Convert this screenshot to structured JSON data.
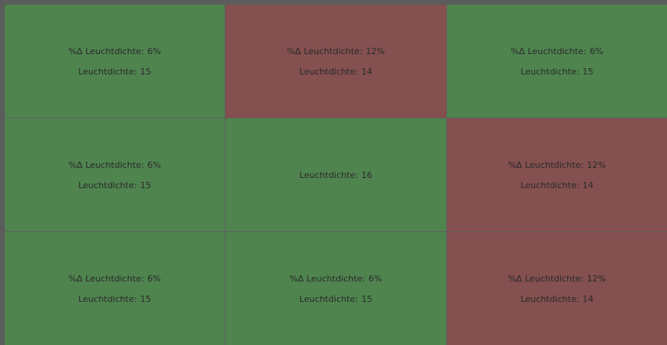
{
  "colors": {
    "ok": "#4f844f",
    "alert": "#845050",
    "border": "#5c5c5c",
    "text": "#2a2a2a"
  },
  "cells": [
    {
      "status": "ok",
      "delta_label": "%Δ Leuchtdichte:",
      "delta_value": "6%",
      "lum_label": "Leuchtdichte:",
      "lum_value": "15"
    },
    {
      "status": "alert",
      "delta_label": "%Δ Leuchtdichte:",
      "delta_value": "12%",
      "lum_label": "Leuchtdichte:",
      "lum_value": "14"
    },
    {
      "status": "ok",
      "delta_label": "%Δ Leuchtdichte:",
      "delta_value": "6%",
      "lum_label": "Leuchtdichte:",
      "lum_value": "15"
    },
    {
      "status": "ok",
      "delta_label": "%Δ Leuchtdichte:",
      "delta_value": "6%",
      "lum_label": "Leuchtdichte:",
      "lum_value": "15"
    },
    {
      "status": "ok",
      "lum_label": "Leuchtdichte:",
      "lum_value": "16"
    },
    {
      "status": "alert",
      "delta_label": "%Δ Leuchtdichte:",
      "delta_value": "12%",
      "lum_label": "Leuchtdichte:",
      "lum_value": "14"
    },
    {
      "status": "ok",
      "delta_label": "%Δ Leuchtdichte:",
      "delta_value": "6%",
      "lum_label": "Leuchtdichte:",
      "lum_value": "15"
    },
    {
      "status": "ok",
      "delta_label": "%Δ Leuchtdichte:",
      "delta_value": "6%",
      "lum_label": "Leuchtdichte:",
      "lum_value": "15"
    },
    {
      "status": "alert",
      "delta_label": "%Δ Leuchtdichte:",
      "delta_value": "12%",
      "lum_label": "Leuchtdichte:",
      "lum_value": "14"
    }
  ]
}
